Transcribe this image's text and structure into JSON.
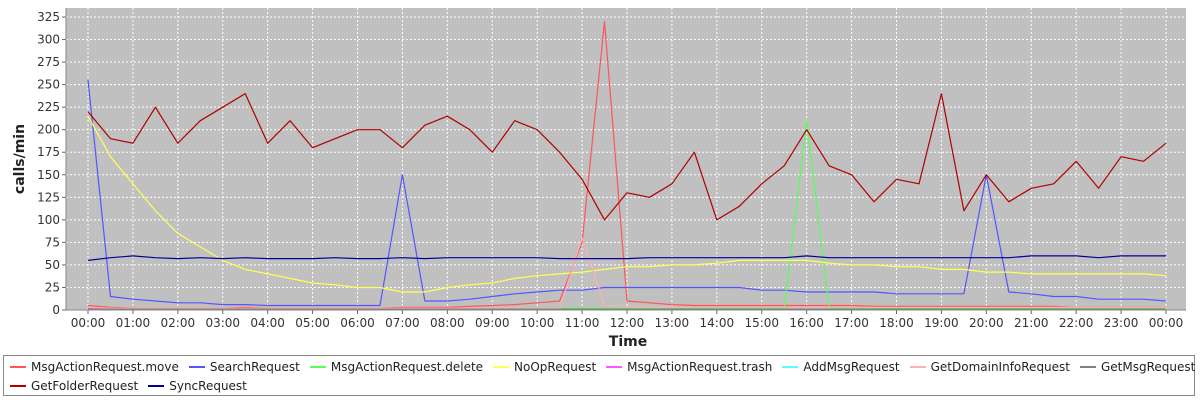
{
  "chart_data": {
    "type": "line",
    "title": "",
    "xlabel": "Time",
    "ylabel": "calls/min",
    "ylim": [
      0,
      335
    ],
    "yticks": [
      0,
      25,
      50,
      75,
      100,
      125,
      150,
      175,
      200,
      225,
      250,
      275,
      300,
      325
    ],
    "xticks": [
      "00:00",
      "01:00",
      "02:00",
      "03:00",
      "04:00",
      "05:00",
      "06:00",
      "07:00",
      "08:00",
      "09:00",
      "10:00",
      "11:00",
      "12:00",
      "13:00",
      "14:00",
      "15:00",
      "16:00",
      "17:00",
      "18:00",
      "19:00",
      "20:00",
      "21:00",
      "22:00",
      "23:00",
      "00:00"
    ],
    "grid": true,
    "legend_position": "bottom",
    "x_hours": [
      0,
      0.5,
      1,
      1.5,
      2,
      2.5,
      3,
      3.5,
      4,
      4.5,
      5,
      5.5,
      6,
      6.5,
      7,
      7.5,
      8,
      8.5,
      9,
      9.5,
      10,
      10.5,
      11,
      11.5,
      12,
      12.5,
      13,
      13.5,
      14,
      14.5,
      15,
      15.5,
      16,
      16.5,
      17,
      17.5,
      18,
      18.5,
      19,
      19.5,
      20,
      20.5,
      21,
      21.5,
      22,
      22.5,
      23,
      23.5,
      24
    ],
    "series": [
      {
        "name": "MsgActionRequest.move",
        "color": "#ff5555",
        "values": [
          5,
          3,
          2,
          2,
          2,
          2,
          2,
          3,
          2,
          2,
          2,
          2,
          2,
          2,
          3,
          3,
          3,
          4,
          5,
          6,
          8,
          10,
          75,
          320,
          10,
          8,
          6,
          5,
          5,
          5,
          5,
          5,
          5,
          5,
          5,
          4,
          4,
          4,
          4,
          4,
          4,
          4,
          4,
          4,
          3,
          3,
          3,
          3,
          3
        ]
      },
      {
        "name": "SearchRequest",
        "color": "#5555ff",
        "values": [
          255,
          15,
          12,
          10,
          8,
          8,
          6,
          6,
          5,
          5,
          5,
          5,
          5,
          5,
          150,
          10,
          10,
          12,
          15,
          18,
          20,
          22,
          22,
          25,
          25,
          25,
          25,
          25,
          25,
          25,
          22,
          22,
          20,
          20,
          20,
          20,
          18,
          18,
          18,
          18,
          150,
          20,
          18,
          15,
          15,
          12,
          12,
          12,
          10
        ]
      },
      {
        "name": "MsgActionRequest.delete",
        "color": "#55ff55",
        "values": [
          2,
          1,
          1,
          1,
          1,
          1,
          1,
          1,
          1,
          1,
          1,
          1,
          1,
          1,
          1,
          1,
          1,
          1,
          1,
          2,
          2,
          2,
          2,
          2,
          2,
          2,
          2,
          2,
          2,
          2,
          2,
          2,
          210,
          2,
          2,
          2,
          2,
          2,
          2,
          2,
          2,
          2,
          2,
          2,
          2,
          2,
          2,
          2,
          2
        ]
      },
      {
        "name": "NoOpRequest",
        "color": "#ffff55",
        "values": [
          215,
          170,
          140,
          110,
          85,
          70,
          55,
          45,
          40,
          35,
          30,
          28,
          25,
          25,
          20,
          20,
          25,
          28,
          30,
          35,
          38,
          40,
          42,
          45,
          48,
          48,
          50,
          50,
          52,
          55,
          55,
          55,
          55,
          52,
          50,
          50,
          48,
          48,
          45,
          45,
          42,
          42,
          40,
          40,
          40,
          40,
          40,
          40,
          38
        ]
      },
      {
        "name": "MsgActionRequest.trash",
        "color": "#ff55ff",
        "values": [
          2,
          1,
          1,
          1,
          1,
          1,
          1,
          1,
          1,
          1,
          1,
          1,
          1,
          1,
          1,
          1,
          1,
          1,
          1,
          1,
          1,
          1,
          1,
          1,
          1,
          1,
          1,
          1,
          1,
          1,
          1,
          1,
          1,
          1,
          1,
          1,
          1,
          1,
          1,
          1,
          1,
          1,
          1,
          1,
          1,
          1,
          1,
          1,
          1
        ]
      },
      {
        "name": "AddMsgRequest",
        "color": "#55ffff",
        "values": [
          1,
          1,
          1,
          1,
          1,
          1,
          1,
          1,
          1,
          1,
          1,
          1,
          1,
          1,
          1,
          1,
          1,
          1,
          1,
          1,
          1,
          1,
          1,
          1,
          1,
          1,
          1,
          1,
          1,
          1,
          1,
          1,
          1,
          1,
          1,
          1,
          1,
          1,
          1,
          1,
          1,
          1,
          1,
          1,
          1,
          1,
          1,
          1,
          1
        ]
      },
      {
        "name": "GetDomainInfoRequest",
        "color": "#ffafaf",
        "values": [
          3,
          2,
          2,
          2,
          2,
          2,
          2,
          2,
          2,
          2,
          2,
          2,
          2,
          2,
          2,
          2,
          2,
          2,
          2,
          2,
          2,
          2,
          80,
          5,
          3,
          3,
          3,
          3,
          3,
          3,
          3,
          3,
          3,
          3,
          3,
          3,
          3,
          3,
          3,
          3,
          3,
          3,
          3,
          3,
          3,
          3,
          3,
          3,
          3
        ]
      },
      {
        "name": "GetMsgRequest",
        "color": "#808080",
        "values": [
          1,
          1,
          1,
          1,
          1,
          1,
          1,
          1,
          1,
          1,
          1,
          1,
          1,
          1,
          1,
          1,
          1,
          1,
          1,
          1,
          1,
          1,
          1,
          1,
          1,
          1,
          1,
          1,
          1,
          1,
          1,
          1,
          1,
          1,
          1,
          1,
          1,
          1,
          1,
          1,
          1,
          1,
          1,
          1,
          1,
          1,
          1,
          1,
          1
        ]
      },
      {
        "name": "GetFolderRequest",
        "color": "#b00000",
        "values": [
          220,
          190,
          185,
          225,
          185,
          210,
          225,
          240,
          185,
          210,
          180,
          190,
          200,
          200,
          180,
          205,
          215,
          200,
          175,
          210,
          200,
          175,
          145,
          100,
          130,
          125,
          140,
          175,
          100,
          115,
          140,
          160,
          200,
          160,
          150,
          120,
          145,
          140,
          240,
          110,
          150,
          120,
          135,
          140,
          165,
          135,
          170,
          165,
          185
        ]
      },
      {
        "name": "SyncRequest",
        "color": "#000099",
        "values": [
          55,
          58,
          60,
          58,
          57,
          58,
          57,
          58,
          57,
          57,
          57,
          58,
          57,
          57,
          58,
          57,
          58,
          58,
          58,
          58,
          58,
          57,
          57,
          57,
          57,
          58,
          58,
          58,
          58,
          58,
          58,
          58,
          60,
          58,
          58,
          58,
          58,
          58,
          58,
          58,
          58,
          58,
          60,
          60,
          60,
          58,
          60,
          60,
          60
        ]
      }
    ]
  }
}
